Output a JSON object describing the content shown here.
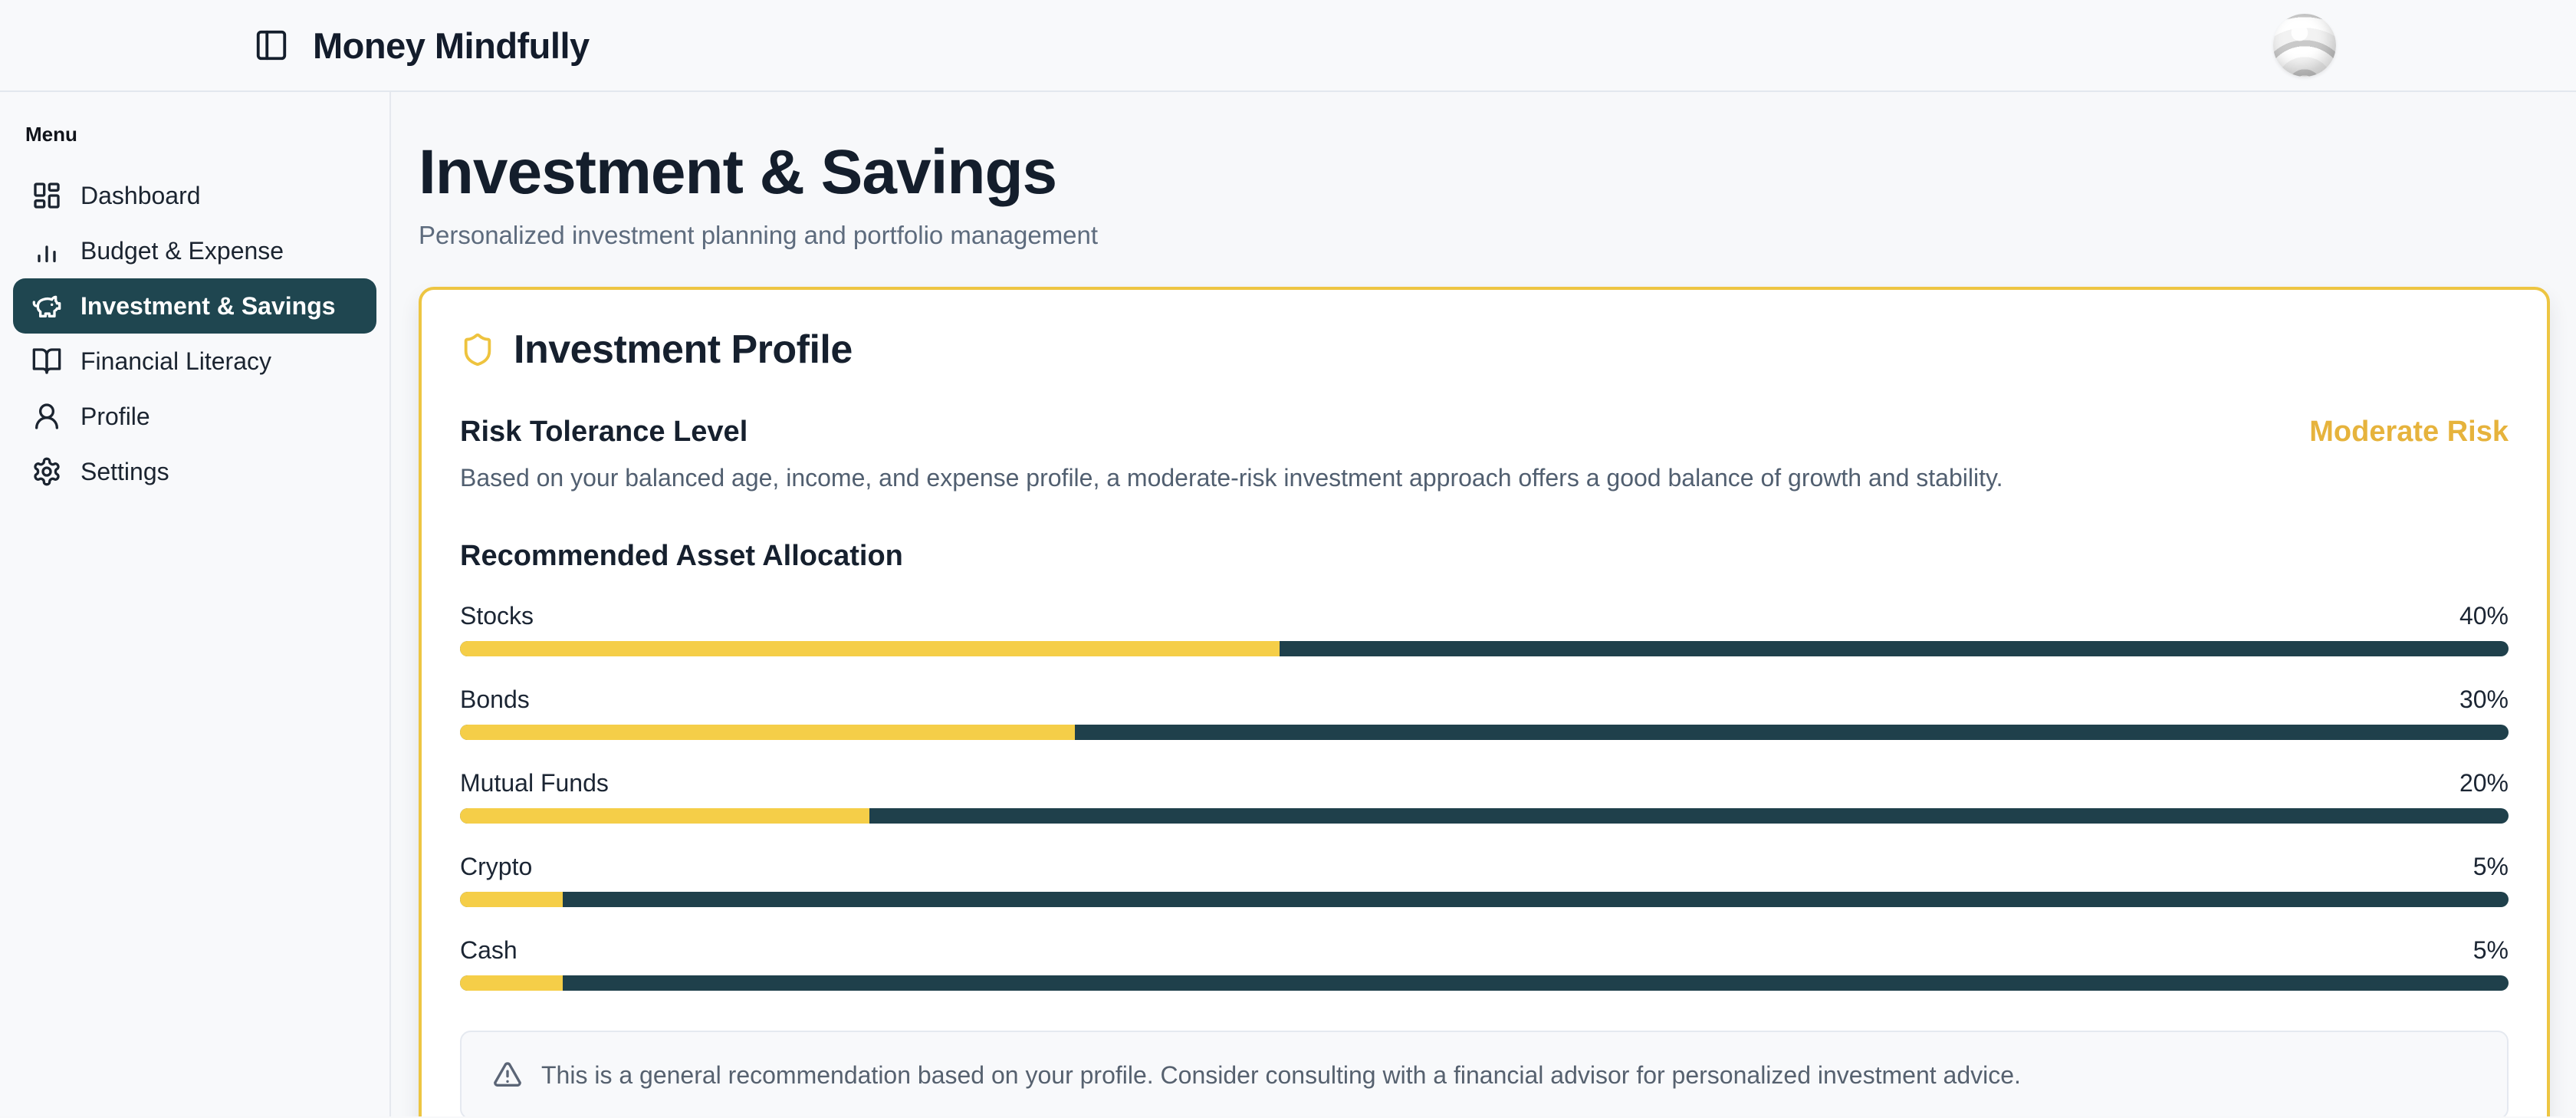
{
  "header": {
    "app_title": "Money Mindfully"
  },
  "sidebar": {
    "menu_label": "Menu",
    "items": [
      {
        "label": "Dashboard",
        "icon": "layout-dashboard-icon",
        "active": false
      },
      {
        "label": "Budget & Expense",
        "icon": "bar-chart-icon",
        "active": false
      },
      {
        "label": "Investment & Savings",
        "icon": "piggy-bank-icon",
        "active": true
      },
      {
        "label": "Financial Literacy",
        "icon": "book-open-icon",
        "active": false
      },
      {
        "label": "Profile",
        "icon": "user-icon",
        "active": false
      },
      {
        "label": "Settings",
        "icon": "gear-icon",
        "active": false
      }
    ]
  },
  "page": {
    "title": "Investment & Savings",
    "subtitle": "Personalized investment planning and portfolio management"
  },
  "investment_profile": {
    "card_title": "Investment Profile",
    "risk": {
      "title": "Risk Tolerance Level",
      "level_badge": "Moderate Risk",
      "description": "Based on your balanced age, income, and expense profile, a moderate-risk investment approach offers a good balance of growth and stability."
    },
    "allocation": {
      "title": "Recommended Asset Allocation",
      "items": [
        {
          "label": "Stocks",
          "percent": 40,
          "percent_label": "40%"
        },
        {
          "label": "Bonds",
          "percent": 30,
          "percent_label": "30%"
        },
        {
          "label": "Mutual Funds",
          "percent": 20,
          "percent_label": "20%"
        },
        {
          "label": "Crypto",
          "percent": 5,
          "percent_label": "5%"
        },
        {
          "label": "Cash",
          "percent": 5,
          "percent_label": "5%"
        }
      ]
    },
    "disclaimer": "This is a general recommendation based on your profile. Consider consulting with a financial advisor for personalized investment advice."
  },
  "colors": {
    "accent_gold": "#f5ce48",
    "card_border_gold": "#edc542",
    "badge_gold": "#e6b33c",
    "dark_teal": "#1f4650",
    "bar_track_dark": "#1f404b",
    "text_dark": "#16202e",
    "text_muted": "#515f70"
  }
}
